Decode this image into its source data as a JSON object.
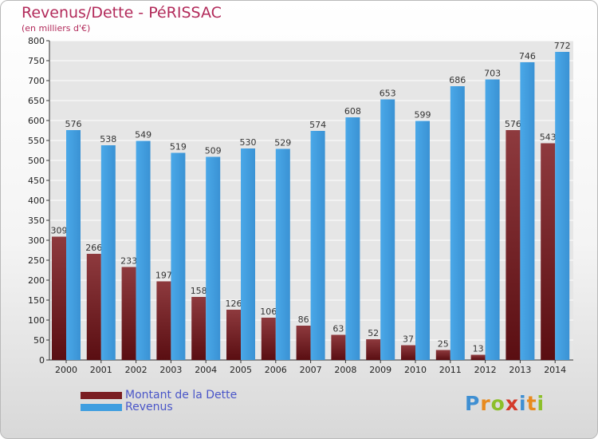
{
  "chart_data": {
    "type": "bar",
    "title": "Revenus/Dette - PéRISSAC",
    "subtitle": "(en milliers d'€)",
    "categories": [
      "2000",
      "2001",
      "2002",
      "2003",
      "2004",
      "2005",
      "2006",
      "2007",
      "2008",
      "2009",
      "2010",
      "2011",
      "2012",
      "2013",
      "2014"
    ],
    "series": [
      {
        "name": "Montant de la Dette",
        "color": "#7a1e22",
        "values": [
          309,
          266,
          233,
          197,
          158,
          126,
          106,
          86,
          63,
          52,
          37,
          25,
          13,
          576,
          543
        ]
      },
      {
        "name": "Revenus",
        "color": "#3f9ee0",
        "values": [
          576,
          538,
          549,
          519,
          509,
          530,
          529,
          574,
          608,
          653,
          599,
          686,
          703,
          746,
          772
        ]
      }
    ],
    "ylim": [
      0,
      800
    ],
    "yticks": [
      0,
      50,
      100,
      150,
      200,
      250,
      300,
      350,
      400,
      450,
      500,
      550,
      600,
      650,
      700,
      750,
      800
    ],
    "grid": true,
    "legend_position": "bottom-left",
    "xlabel": "",
    "ylabel": ""
  },
  "logo": {
    "letters": [
      "P",
      "r",
      "o",
      "x",
      "i",
      "t",
      "i"
    ]
  }
}
